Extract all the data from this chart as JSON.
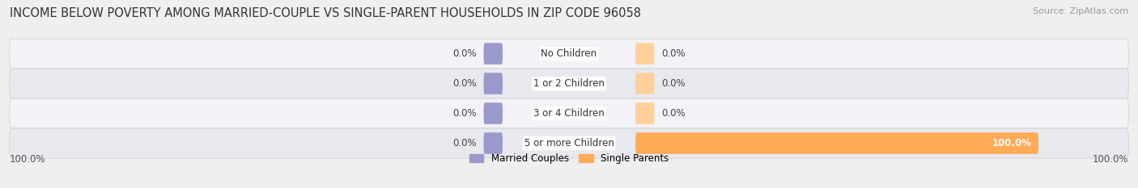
{
  "title": "INCOME BELOW POVERTY AMONG MARRIED-COUPLE VS SINGLE-PARENT HOUSEHOLDS IN ZIP CODE 96058",
  "source": "Source: ZipAtlas.com",
  "categories": [
    "No Children",
    "1 or 2 Children",
    "3 or 4 Children",
    "5 or more Children"
  ],
  "married_values": [
    0.0,
    0.0,
    0.0,
    0.0
  ],
  "single_values": [
    0.0,
    0.0,
    0.0,
    100.0
  ],
  "married_color": "#9999cc",
  "single_color": "#ffaa55",
  "single_color_light": "#ffd099",
  "bg_color": "#efefef",
  "row_bg_even": "#e8e8ef",
  "row_bg_odd": "#f2f2f7",
  "max_value": 100.0,
  "legend_married": "Married Couples",
  "legend_single": "Single Parents",
  "title_fontsize": 10.5,
  "source_fontsize": 8,
  "label_fontsize": 8.5,
  "category_fontsize": 8.5,
  "left_axis_label": "100.0%",
  "right_axis_label": "100.0%"
}
